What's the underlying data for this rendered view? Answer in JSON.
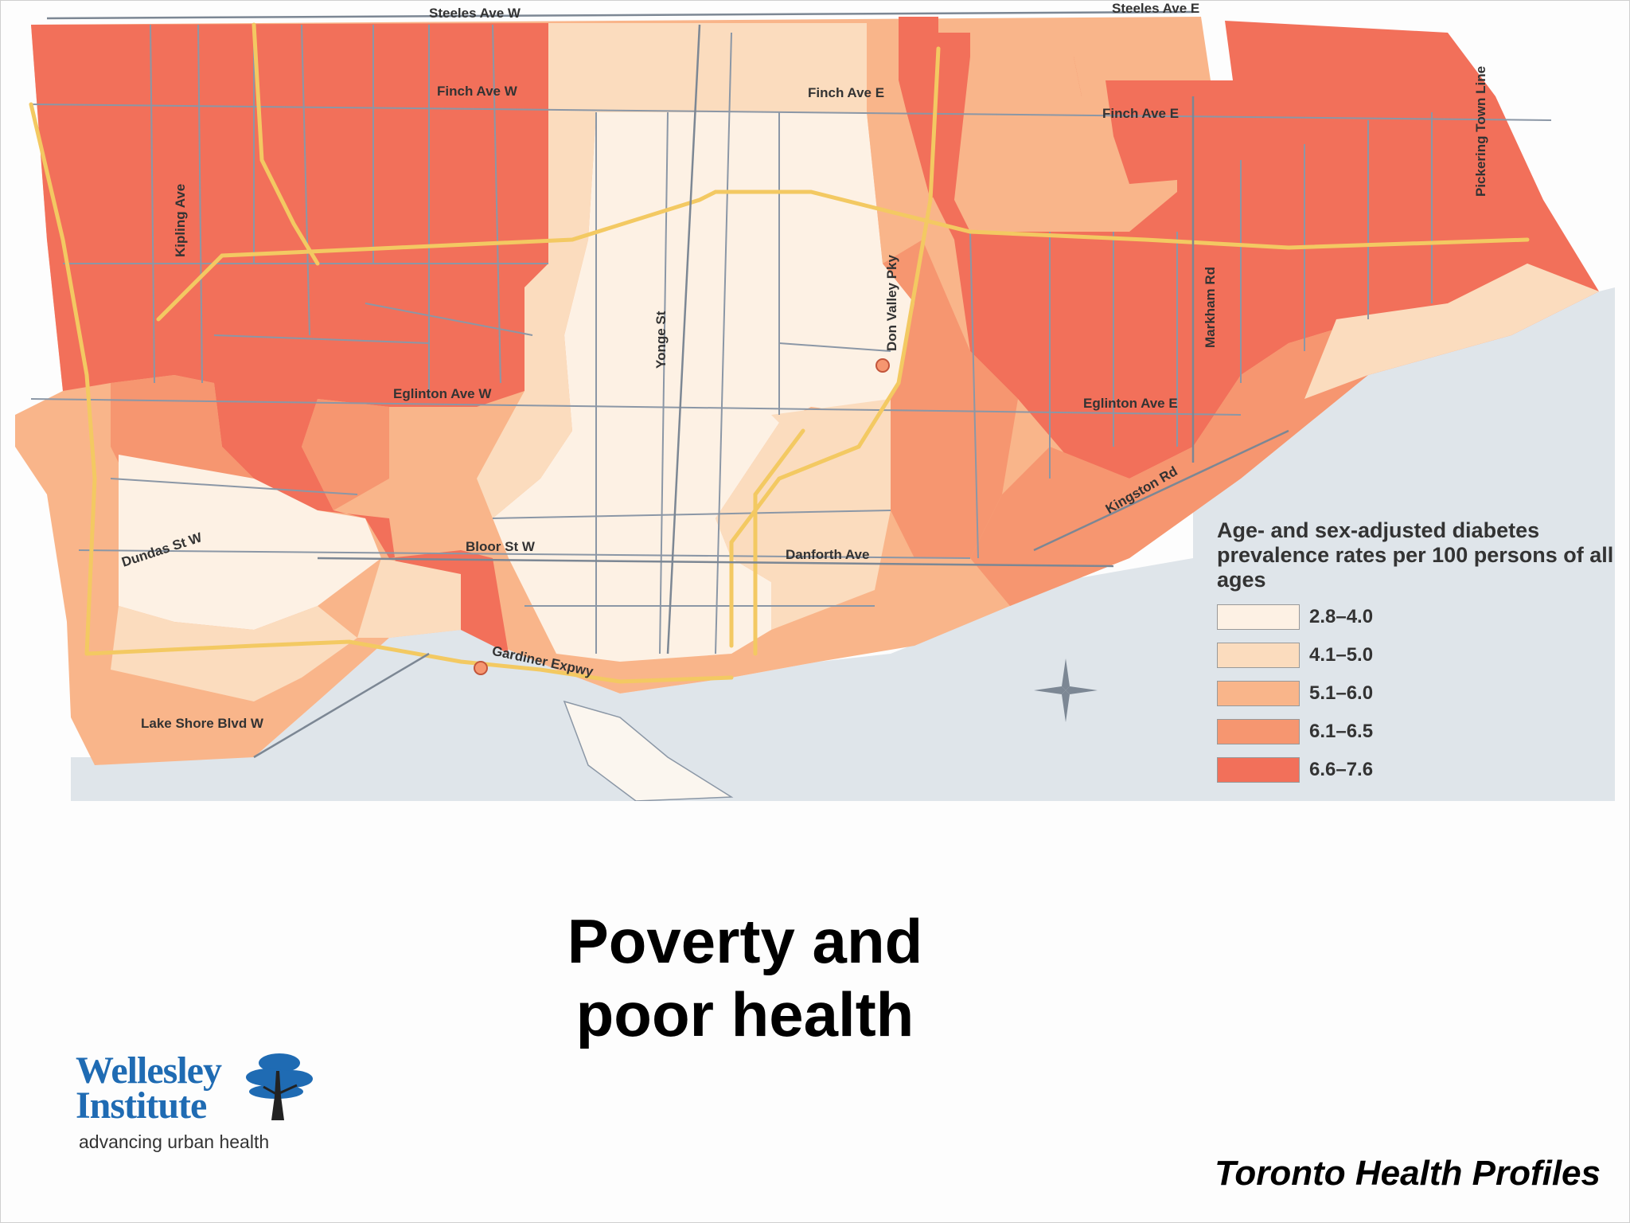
{
  "title": "Poverty and poor health",
  "source": "Toronto Health Profiles",
  "logo": {
    "name_line1": "Wellesley",
    "name_line2": "Institute",
    "tagline": "advancing urban health"
  },
  "legend": {
    "title": "Age- and sex-adjusted diabetes prevalence rates per 100 persons of all ages",
    "classes": [
      {
        "label": "2.8–4.0",
        "color": "#fdf1e4"
      },
      {
        "label": "4.1–5.0",
        "color": "#fbdcbe"
      },
      {
        "label": "5.1–6.0",
        "color": "#f9b58a"
      },
      {
        "label": "6.1–6.5",
        "color": "#f69670"
      },
      {
        "label": "6.6–7.6",
        "color": "#f2705a"
      }
    ]
  },
  "colors": {
    "water": "#dfe5ea",
    "road": "#f3c962",
    "boundary": "#8b97a6"
  },
  "roads": [
    "Steeles Ave W",
    "Steeles Ave E",
    "Finch Ave W",
    "Finch Ave E",
    "Finch Ave E",
    "Kipling Ave",
    "Yonge St",
    "Don Valley Pky",
    "Markham Rd",
    "Pickering Town Line",
    "Eglinton Ave W",
    "Eglinton Ave E",
    "Kingston Rd",
    "Dundas St W",
    "Bloor St W",
    "Danforth Ave",
    "Gardiner Expwy",
    "Lake Shore Blvd W"
  ]
}
